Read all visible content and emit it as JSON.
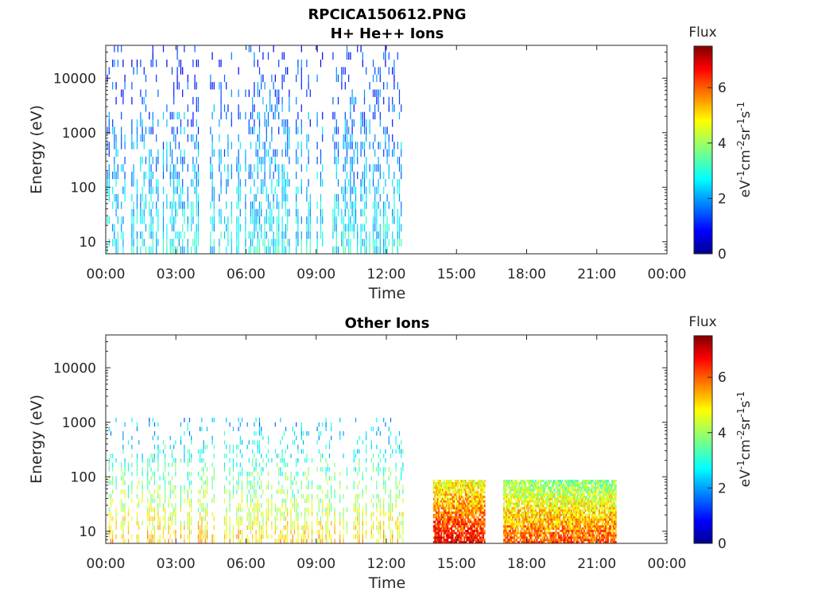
{
  "colors": {
    "colormap": [
      "#00008f",
      "#0000ff",
      "#0080ff",
      "#00ffff",
      "#80ff80",
      "#ffff00",
      "#ff8000",
      "#ff0000",
      "#800000"
    ],
    "axis": "#262626",
    "background": "#ffffff"
  },
  "chart_data": [
    {
      "type": "heatmap",
      "title": "RPCICA150612.PNG",
      "subtitle": "H+ He++ Ions",
      "xlabel": "Time",
      "ylabel": "Energy (eV)",
      "xticks": [
        "00:00",
        "03:00",
        "06:00",
        "09:00",
        "12:00",
        "15:00",
        "18:00",
        "21:00",
        "00:00"
      ],
      "xlim_hours": [
        0,
        24
      ],
      "yscale": "log",
      "ylim": [
        6,
        40000
      ],
      "yticks": [
        {
          "value": 10,
          "label": "10"
        },
        {
          "value": 100,
          "label": "100"
        },
        {
          "value": 1000,
          "label": "1000"
        },
        {
          "value": 10000,
          "label": "10000"
        }
      ],
      "colorbar": {
        "title": "Flux",
        "label": "eV-1cm-2sr-1s-1",
        "label_parts": [
          "eV",
          "-1",
          "cm",
          "-2",
          "sr",
          "-1",
          "s",
          "-1"
        ],
        "range": [
          0,
          7.5
        ],
        "ticks": [
          "0",
          "2",
          "4",
          "6"
        ]
      },
      "data_segments": [
        {
          "start_hour": 0.05,
          "end_hour": 12.75,
          "emin": 6,
          "emax": 30000,
          "flux_low_energy": 2.8,
          "flux_high_energy": 1.2
        }
      ]
    },
    {
      "type": "heatmap",
      "title": "Other Ions",
      "xlabel": "Time",
      "ylabel": "Energy (eV)",
      "xticks": [
        "00:00",
        "03:00",
        "06:00",
        "09:00",
        "12:00",
        "15:00",
        "18:00",
        "21:00",
        "00:00"
      ],
      "xlim_hours": [
        0,
        24
      ],
      "yscale": "log",
      "ylim": [
        6,
        40000
      ],
      "yticks": [
        {
          "value": 10,
          "label": "10"
        },
        {
          "value": 100,
          "label": "100"
        },
        {
          "value": 1000,
          "label": "1000"
        },
        {
          "value": 10000,
          "label": "10000"
        }
      ],
      "colorbar": {
        "title": "Flux",
        "label": "eV-1cm-2sr-1s-1",
        "label_parts": [
          "eV",
          "-1",
          "cm",
          "-2",
          "sr",
          "-1",
          "s",
          "-1"
        ],
        "range": [
          0,
          7.5
        ],
        "ticks": [
          "0",
          "2",
          "4",
          "6"
        ]
      },
      "data_segments": [
        {
          "start_hour": 0.05,
          "end_hour": 12.75,
          "emin": 6,
          "emax": 1000,
          "flux_low_energy": 5.0,
          "flux_high_energy": 2.2
        },
        {
          "start_hour": 14.0,
          "end_hour": 16.2,
          "emin": 6,
          "emax": 80,
          "flux_low_energy": 6.6,
          "flux_high_energy": 4.6
        },
        {
          "start_hour": 17.0,
          "end_hour": 21.8,
          "emin": 6,
          "emax": 80,
          "flux_low_energy": 6.0,
          "flux_high_energy": 3.8
        }
      ]
    }
  ]
}
